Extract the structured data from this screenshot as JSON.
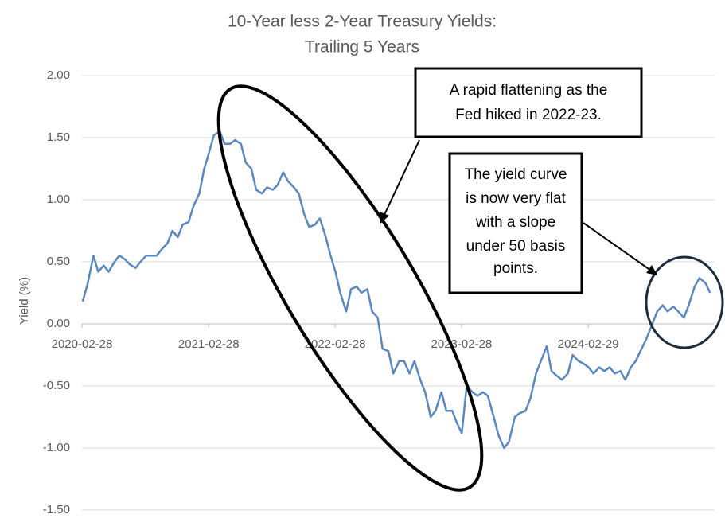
{
  "chart_data": {
    "type": "line",
    "title": [
      "10-Year less 2-Year Treasury Yields:",
      "Trailing 5 Years"
    ],
    "y_label": "Yield (%)",
    "x": [
      "2020-03-01",
      "2020-03-15",
      "2020-04-01",
      "2020-04-15",
      "2020-05-01",
      "2020-05-15",
      "2020-06-01",
      "2020-06-15",
      "2020-07-01",
      "2020-07-15",
      "2020-08-01",
      "2020-08-15",
      "2020-09-01",
      "2020-09-15",
      "2020-10-01",
      "2020-10-15",
      "2020-11-01",
      "2020-11-15",
      "2020-12-01",
      "2020-12-15",
      "2021-01-01",
      "2021-01-15",
      "2021-02-01",
      "2021-02-15",
      "2021-03-01",
      "2021-03-15",
      "2021-04-01",
      "2021-04-15",
      "2021-05-01",
      "2021-05-15",
      "2021-06-01",
      "2021-06-15",
      "2021-07-01",
      "2021-07-15",
      "2021-08-01",
      "2021-08-15",
      "2021-09-01",
      "2021-09-15",
      "2021-10-01",
      "2021-10-15",
      "2021-11-01",
      "2021-11-15",
      "2021-12-01",
      "2021-12-15",
      "2022-01-01",
      "2022-01-15",
      "2022-02-01",
      "2022-02-15",
      "2022-03-01",
      "2022-03-15",
      "2022-04-01",
      "2022-04-15",
      "2022-05-01",
      "2022-05-15",
      "2022-06-01",
      "2022-06-15",
      "2022-07-01",
      "2022-07-15",
      "2022-08-01",
      "2022-08-15",
      "2022-09-01",
      "2022-09-15",
      "2022-10-01",
      "2022-10-15",
      "2022-11-01",
      "2022-11-15",
      "2022-12-01",
      "2022-12-15",
      "2023-01-01",
      "2023-01-15",
      "2023-02-01",
      "2023-02-15",
      "2023-03-01",
      "2023-03-15",
      "2023-04-01",
      "2023-04-15",
      "2023-05-01",
      "2023-05-15",
      "2023-06-01",
      "2023-06-15",
      "2023-07-01",
      "2023-07-15",
      "2023-08-01",
      "2023-08-15",
      "2023-09-01",
      "2023-09-15",
      "2023-10-01",
      "2023-10-15",
      "2023-11-01",
      "2023-11-15",
      "2023-12-01",
      "2023-12-15",
      "2024-01-01",
      "2024-01-15",
      "2024-02-01",
      "2024-02-15",
      "2024-03-01",
      "2024-03-15",
      "2024-04-01",
      "2024-04-15",
      "2024-05-01",
      "2024-05-15",
      "2024-06-01",
      "2024-06-15",
      "2024-07-01",
      "2024-07-15",
      "2024-08-01",
      "2024-08-15",
      "2024-09-01",
      "2024-09-15",
      "2024-10-01",
      "2024-10-15",
      "2024-11-01",
      "2024-11-15",
      "2024-12-01",
      "2024-12-15",
      "2025-01-01",
      "2025-01-15",
      "2025-02-01",
      "2025-02-15"
    ],
    "series": [
      {
        "name": "10Y-2Y",
        "color": "#5b87bf",
        "values": [
          0.18,
          0.32,
          0.55,
          0.42,
          0.47,
          0.42,
          0.5,
          0.55,
          0.52,
          0.48,
          0.45,
          0.5,
          0.55,
          0.55,
          0.55,
          0.6,
          0.65,
          0.75,
          0.7,
          0.8,
          0.82,
          0.95,
          1.05,
          1.25,
          1.38,
          1.52,
          1.55,
          1.45,
          1.45,
          1.48,
          1.45,
          1.3,
          1.25,
          1.08,
          1.05,
          1.1,
          1.08,
          1.12,
          1.22,
          1.15,
          1.1,
          1.05,
          0.88,
          0.78,
          0.8,
          0.85,
          0.7,
          0.55,
          0.42,
          0.25,
          0.1,
          0.28,
          0.3,
          0.25,
          0.28,
          0.1,
          0.05,
          -0.2,
          -0.22,
          -0.4,
          -0.3,
          -0.3,
          -0.4,
          -0.3,
          -0.45,
          -0.55,
          -0.75,
          -0.7,
          -0.55,
          -0.7,
          -0.7,
          -0.8,
          -0.88,
          -0.5,
          -0.55,
          -0.58,
          -0.55,
          -0.58,
          -0.75,
          -0.9,
          -1.0,
          -0.95,
          -0.75,
          -0.72,
          -0.7,
          -0.6,
          -0.4,
          -0.3,
          -0.18,
          -0.38,
          -0.42,
          -0.45,
          -0.4,
          -0.25,
          -0.3,
          -0.32,
          -0.35,
          -0.4,
          -0.35,
          -0.38,
          -0.35,
          -0.4,
          -0.38,
          -0.45,
          -0.35,
          -0.3,
          -0.2,
          -0.12,
          0.0,
          0.1,
          0.15,
          0.1,
          0.14,
          0.1,
          0.05,
          0.15,
          0.3,
          0.37,
          0.33,
          0.25
        ]
      }
    ],
    "xlim": [
      "2020-02-28",
      "2025-02-28"
    ],
    "xticks": [
      "2020-02-28",
      "2021-02-28",
      "2022-02-28",
      "2023-02-28",
      "2024-02-29"
    ],
    "ylim": [
      -1.5,
      2
    ],
    "yticks": [
      {
        "value": -1.5,
        "label": "-1.50"
      },
      {
        "value": -1,
        "label": "-1.00"
      },
      {
        "value": -0.5,
        "label": "-0.50"
      },
      {
        "value": 0,
        "label": "0.00"
      },
      {
        "value": 0.5,
        "label": "0.50"
      },
      {
        "value": 1,
        "label": "1.00"
      },
      {
        "value": 1.5,
        "label": "1.50"
      },
      {
        "value": 2,
        "label": "2.00"
      }
    ],
    "grid": true,
    "annotations": [
      {
        "lines": [
          "A rapid flattening as the",
          "Fed hiked in 2022-23."
        ]
      },
      {
        "lines": [
          "The yield curve",
          "is now very flat",
          "with a slope",
          "under 50 basis",
          "points."
        ]
      }
    ]
  }
}
